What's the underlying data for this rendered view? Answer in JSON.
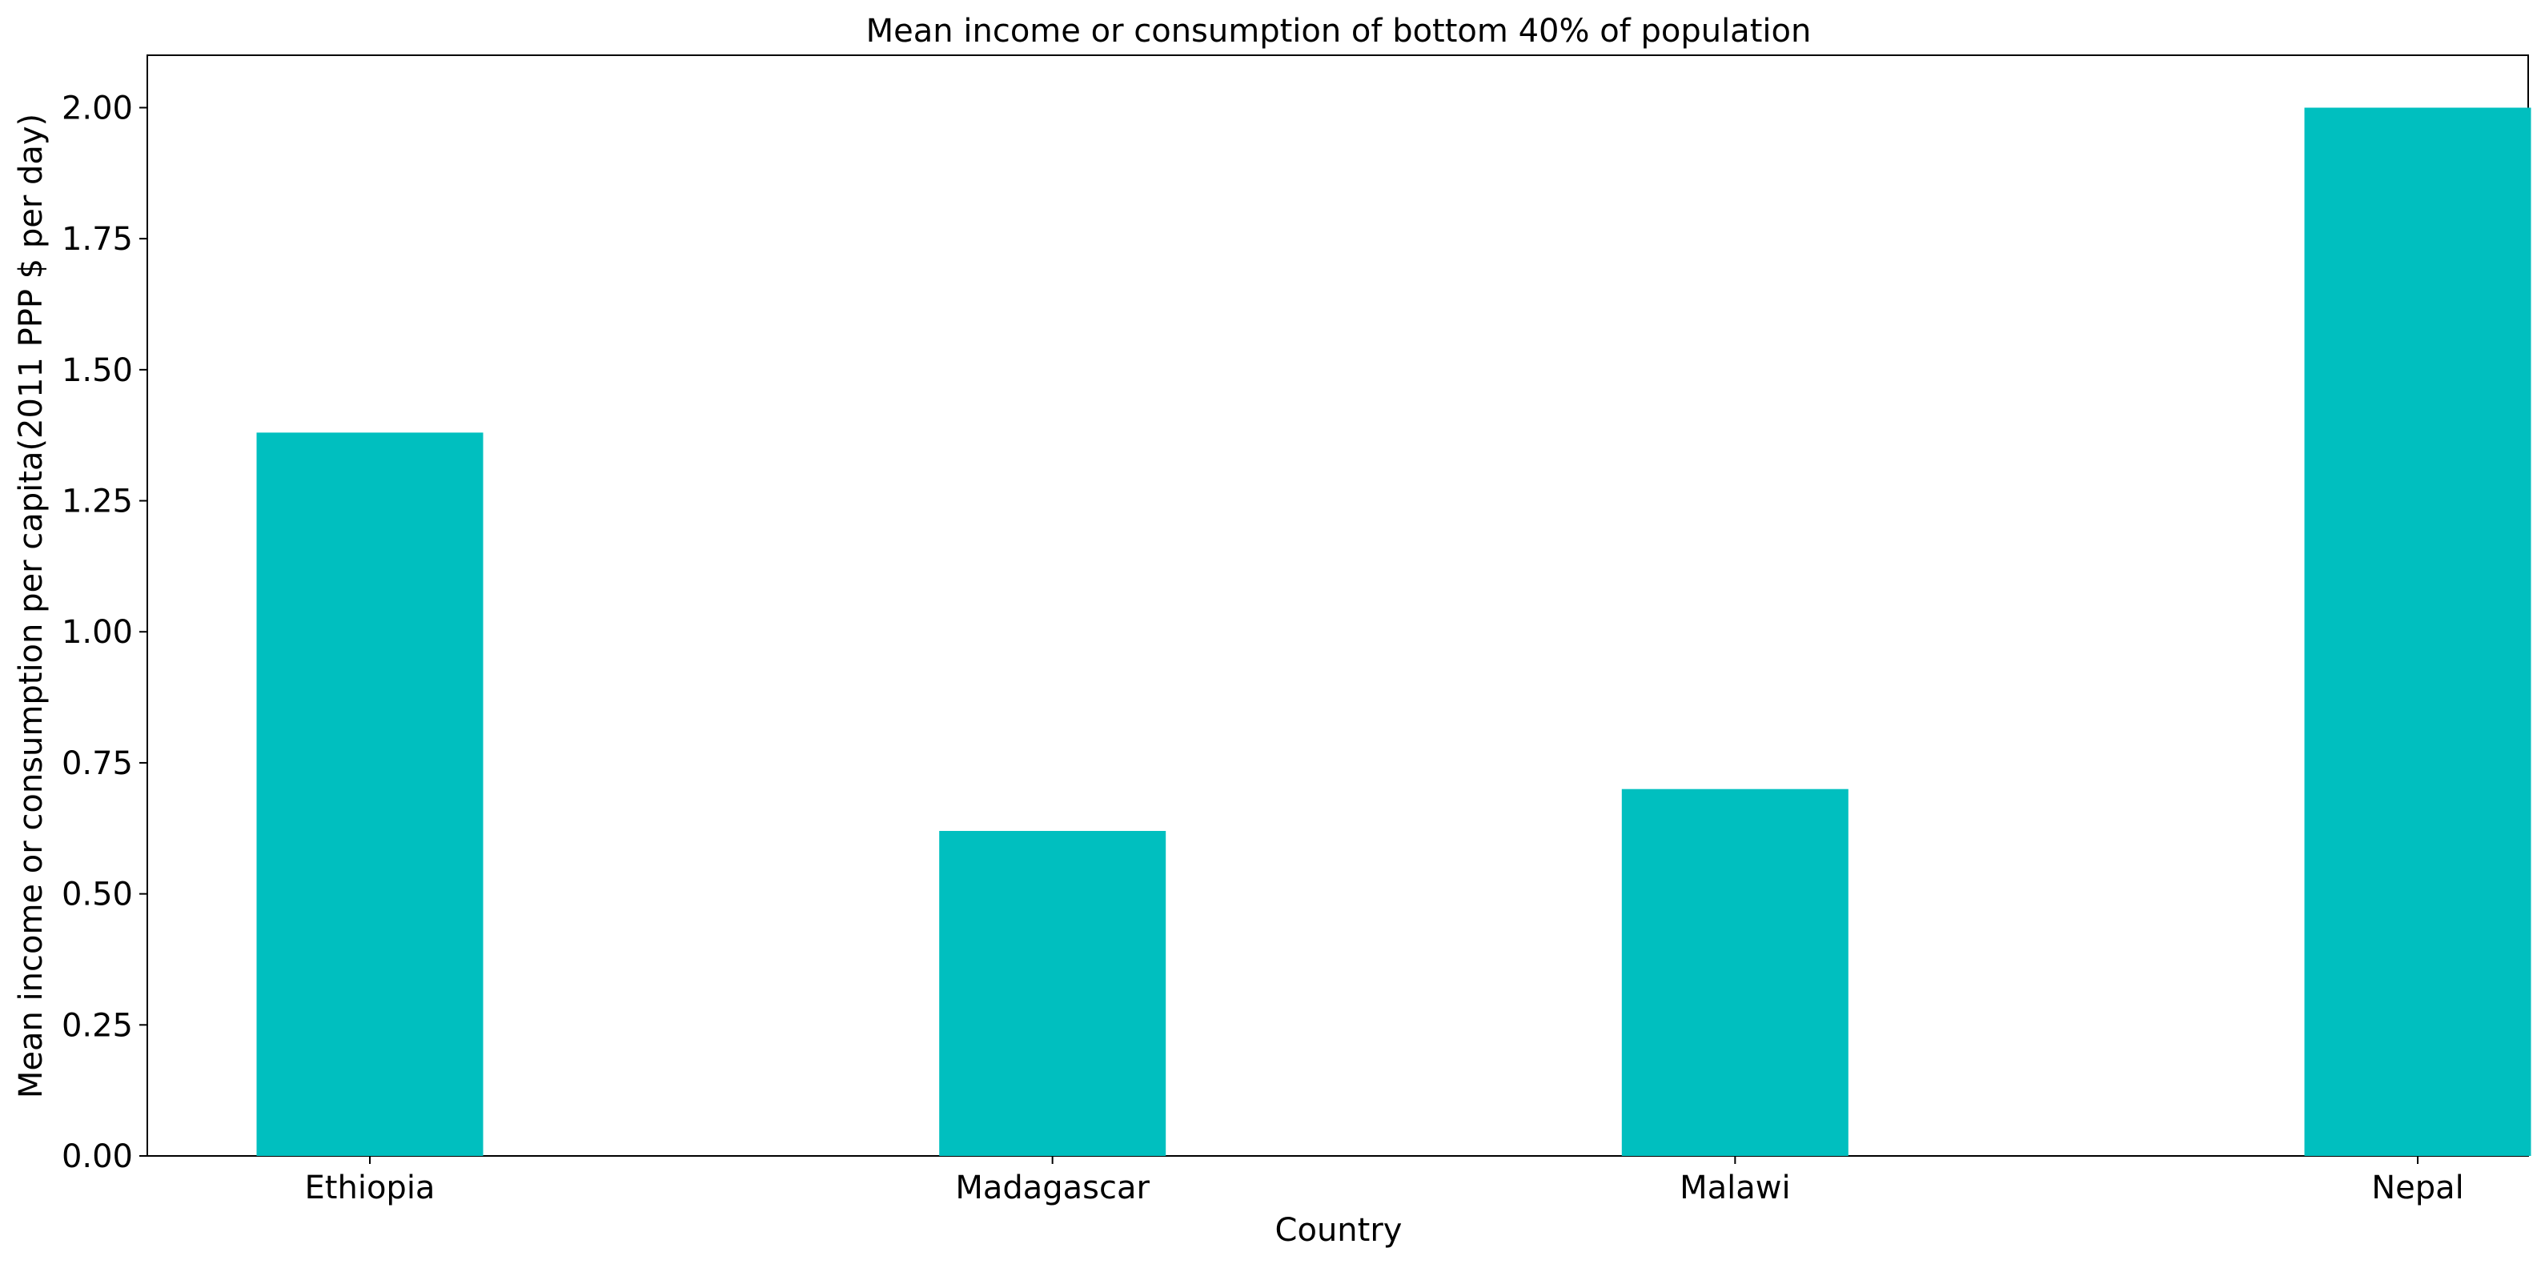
{
  "chart_data": {
    "type": "bar",
    "title": "Mean income or consumption of bottom 40% of population",
    "xlabel": "Country",
    "ylabel": "Mean income or consumption per capita(2011 PPP $ per day)",
    "categories": [
      "Ethiopia",
      "Madagascar",
      "Malawi",
      "Nepal"
    ],
    "values": [
      1.38,
      0.62,
      0.7,
      2.0
    ],
    "ylim": [
      0,
      2.1
    ],
    "yticks": [
      "0.00",
      "0.25",
      "0.50",
      "0.75",
      "1.00",
      "1.25",
      "1.50",
      "1.75",
      "2.00"
    ],
    "bar_color": "#00bfbf",
    "grid": false,
    "legend": "none"
  }
}
